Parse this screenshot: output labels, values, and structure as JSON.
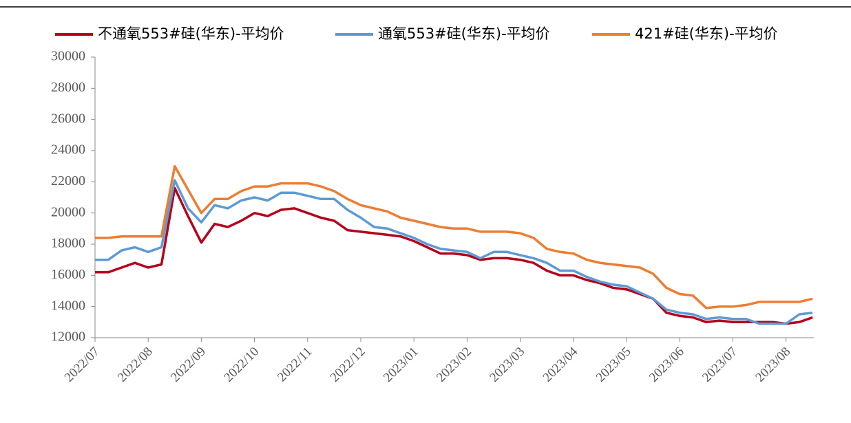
{
  "chart_data": {
    "type": "line",
    "categories": [
      "2022/07",
      null,
      null,
      null,
      "2022/08",
      null,
      null,
      null,
      "2022/09",
      null,
      null,
      null,
      "2022/10",
      null,
      null,
      null,
      "2022/11",
      null,
      null,
      null,
      "2022/12",
      null,
      null,
      null,
      "2023/01",
      null,
      null,
      null,
      "2023/02",
      null,
      null,
      null,
      "2023/03",
      null,
      null,
      null,
      "2023/04",
      null,
      null,
      null,
      "2023/05",
      null,
      null,
      null,
      "2023/06",
      null,
      null,
      null,
      "2023/07",
      null,
      null,
      null,
      "2023/08",
      null,
      null
    ],
    "series": [
      {
        "name": "不通氧553#硅(华东)-平均价",
        "color": "#b5001c",
        "values": [
          16200,
          16200,
          16500,
          16800,
          16500,
          16700,
          21600,
          19800,
          18100,
          19300,
          19100,
          19500,
          20000,
          19800,
          20200,
          20300,
          20000,
          19700,
          19500,
          18900,
          18800,
          18700,
          18600,
          18500,
          18200,
          17800,
          17400,
          17400,
          17300,
          17000,
          17100,
          17100,
          17000,
          16800,
          16300,
          16000,
          16000,
          15700,
          15500,
          15200,
          15100,
          14800,
          14500,
          13600,
          13400,
          13300,
          13000,
          13100,
          13000,
          13000,
          13000,
          13000,
          12900,
          13000,
          13300
        ]
      },
      {
        "name": "通氧553#硅(华东)-平均价",
        "color": "#5b9bd5",
        "values": [
          17000,
          17000,
          17600,
          17800,
          17500,
          17800,
          22100,
          20300,
          19400,
          20500,
          20300,
          20800,
          21000,
          20800,
          21300,
          21300,
          21100,
          20900,
          20900,
          20200,
          19700,
          19100,
          19000,
          18700,
          18400,
          18000,
          17700,
          17600,
          17500,
          17100,
          17500,
          17500,
          17300,
          17100,
          16800,
          16300,
          16300,
          15900,
          15600,
          15400,
          15300,
          14900,
          14500,
          13800,
          13600,
          13500,
          13200,
          13300,
          13200,
          13200,
          12900,
          12900,
          12900,
          13500,
          13600
        ]
      },
      {
        "name": "421#硅(华东)-平均价",
        "color": "#ed7d31",
        "values": [
          18400,
          18400,
          18500,
          18500,
          18500,
          18500,
          23000,
          21500,
          20000,
          20900,
          20900,
          21400,
          21700,
          21700,
          21900,
          21900,
          21900,
          21700,
          21400,
          20900,
          20500,
          20300,
          20100,
          19700,
          19500,
          19300,
          19100,
          19000,
          19000,
          18800,
          18800,
          18800,
          18700,
          18400,
          17700,
          17500,
          17400,
          17000,
          16800,
          16700,
          16600,
          16500,
          16100,
          15200,
          14800,
          14700,
          13900,
          14000,
          14000,
          14100,
          14300,
          14300,
          14300,
          14300,
          14500
        ]
      }
    ],
    "ylim": [
      12000,
      30000
    ],
    "yticks": [
      12000,
      14000,
      16000,
      18000,
      20000,
      22000,
      24000,
      26000,
      28000,
      30000
    ],
    "legend": "top"
  }
}
